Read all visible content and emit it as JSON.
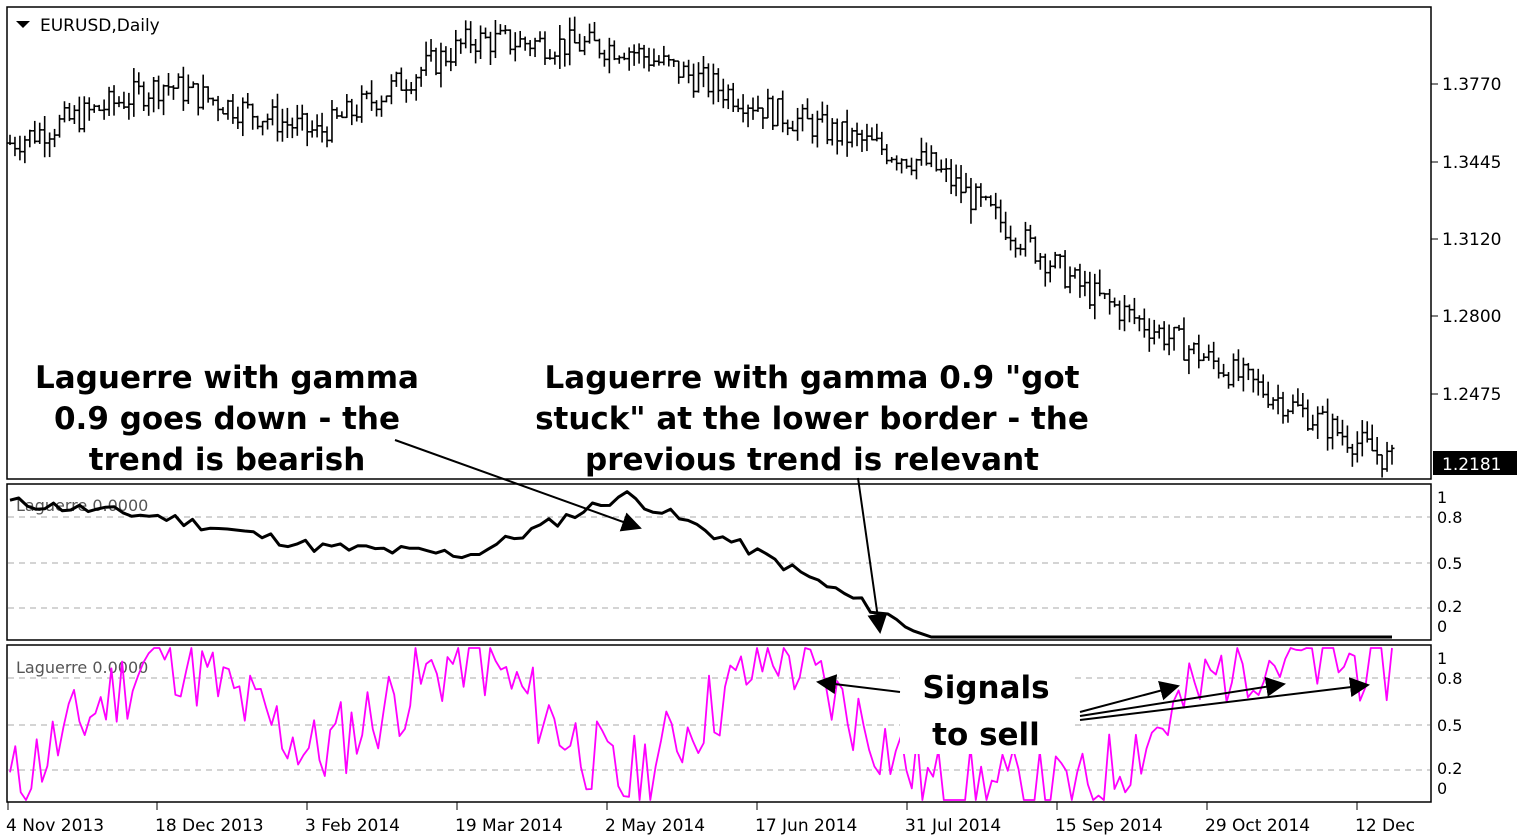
{
  "header": {
    "symbol_label": "EURUSD,Daily"
  },
  "price_axis": {
    "ticks": [
      "1.3770",
      "1.3445",
      "1.3120",
      "1.2800",
      "1.2475"
    ],
    "current_price": "1.2181"
  },
  "laguerre_panel_1": {
    "label": "Laguerre 0.0000",
    "ticks": [
      "1",
      "0.8",
      "0.5",
      "0.2",
      "0"
    ]
  },
  "laguerre_panel_2": {
    "label": "Laguerre 0.0000",
    "ticks": [
      "1",
      "0.8",
      "0.5",
      "0.2",
      "0"
    ]
  },
  "date_axis": [
    "4 Nov 2013",
    "18 Dec 2013",
    "3 Feb 2014",
    "19 Mar 2014",
    "2 May 2014",
    "17 Jun 2014",
    "31 Jul 2014",
    "15 Sep 2014",
    "29 Oct 2014",
    "12 Dec"
  ],
  "annotations": {
    "bearish": [
      "Laguerre with gamma",
      "0.9 goes down - the",
      "trend is bearish"
    ],
    "stuck": [
      "Laguerre with gamma 0.9 \"got",
      "stuck\" at the lower border - the",
      "previous trend is relevant"
    ],
    "signals": [
      "Signals",
      "to sell"
    ]
  },
  "colors": {
    "price_bars": "#000000",
    "laguerre_1": "#000000",
    "laguerre_2": "#ff00ff",
    "grid": "#aaaaaa"
  },
  "chart_data": [
    {
      "type": "ohlc",
      "title": "EURUSD,Daily",
      "x": [
        "4 Nov 2013",
        "18 Dec 2013",
        "3 Feb 2014",
        "19 Mar 2014",
        "2 May 2014",
        "17 Jun 2014",
        "31 Jul 2014",
        "15 Sep 2014",
        "29 Oct 2014",
        "12 Dec"
      ],
      "close_approx": [
        1.348,
        1.372,
        1.352,
        1.39,
        1.387,
        1.36,
        1.339,
        1.288,
        1.253,
        1.2181
      ],
      "ylim": [
        1.2181,
        1.392
      ]
    },
    {
      "type": "line",
      "series": [
        {
          "name": "Laguerre 0.0000",
          "values": [
            0.9,
            0.8,
            0.6,
            0.55,
            0.95,
            0.5,
            0.0,
            0.0,
            0.0,
            0.0
          ]
        }
      ],
      "ylim": [
        0,
        1
      ]
    },
    {
      "type": "line",
      "series": [
        {
          "name": "Laguerre 0.0000",
          "values": [
            0.1,
            1.0,
            0.3,
            1.0,
            0.1,
            1.0,
            0.1,
            0.05,
            0.95,
            0.9
          ]
        }
      ],
      "ylim": [
        0,
        1
      ]
    }
  ]
}
